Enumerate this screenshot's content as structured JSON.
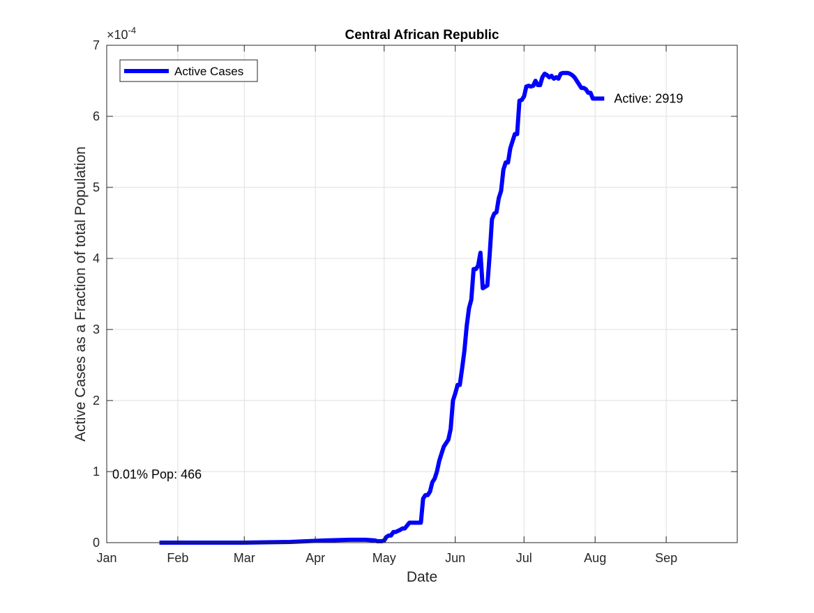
{
  "chart_data": {
    "type": "line",
    "title": "Central African Republic",
    "xlabel": "Date",
    "ylabel": "Active Cases as a Fraction of total Population",
    "y_exponent_label": "×10",
    "y_exponent_power": "-4",
    "y_scale": 0.0001,
    "ylim": [
      0,
      7
    ],
    "yticks": [
      0,
      1,
      2,
      3,
      4,
      5,
      6,
      7
    ],
    "xlim_days": [
      0,
      275
    ],
    "xticks": [
      {
        "label": "Jan",
        "day": 0
      },
      {
        "label": "Feb",
        "day": 31
      },
      {
        "label": "Mar",
        "day": 60
      },
      {
        "label": "Apr",
        "day": 91
      },
      {
        "label": "May",
        "day": 121
      },
      {
        "label": "Jun",
        "day": 152
      },
      {
        "label": "Jul",
        "day": 182
      },
      {
        "label": "Aug",
        "day": 213
      },
      {
        "label": "Sep",
        "day": 244
      }
    ],
    "grid": true,
    "legend": {
      "position": "top-left",
      "entries": [
        "Active Cases"
      ]
    },
    "series": [
      {
        "name": "Active Cases",
        "color": "#0000ff",
        "x": [
          23,
          60,
          80,
          95,
          106,
          113,
          117,
          118,
          120,
          121,
          122,
          123,
          124,
          125,
          126,
          128,
          129,
          130,
          132,
          133,
          134,
          135,
          137,
          138,
          139,
          140,
          141,
          142,
          143,
          144,
          145,
          146,
          147,
          148,
          149,
          150,
          151,
          152,
          153,
          154,
          155,
          156,
          157,
          158,
          159,
          160,
          161,
          162,
          163,
          164,
          165,
          166,
          167,
          168,
          169,
          170,
          171,
          172,
          173,
          174,
          175,
          176,
          177,
          178,
          179,
          180,
          181,
          182,
          183,
          184,
          185,
          186,
          187,
          188,
          189,
          190,
          191,
          192,
          193,
          194,
          195,
          196,
          197,
          198,
          199,
          200,
          201,
          202,
          203,
          204,
          205,
          206,
          207,
          208,
          209,
          210,
          211,
          212,
          213,
          214,
          215,
          216,
          217
        ],
        "y": [
          0,
          0,
          0.01,
          0.03,
          0.04,
          0.04,
          0.03,
          0.02,
          0.02,
          0.03,
          0.08,
          0.1,
          0.1,
          0.15,
          0.15,
          0.18,
          0.2,
          0.2,
          0.28,
          0.28,
          0.28,
          0.28,
          0.28,
          0.62,
          0.67,
          0.67,
          0.72,
          0.85,
          0.9,
          1.0,
          1.15,
          1.25,
          1.35,
          1.4,
          1.45,
          1.6,
          2.0,
          2.1,
          2.22,
          2.22,
          2.45,
          2.7,
          3.05,
          3.3,
          3.42,
          3.85,
          3.85,
          3.9,
          4.08,
          3.58,
          3.6,
          3.62,
          4.05,
          4.55,
          4.63,
          4.65,
          4.85,
          4.95,
          5.25,
          5.35,
          5.35,
          5.55,
          5.65,
          5.75,
          5.75,
          6.22,
          6.23,
          6.28,
          6.42,
          6.43,
          6.42,
          6.43,
          6.5,
          6.44,
          6.44,
          6.55,
          6.6,
          6.58,
          6.55,
          6.57,
          6.53,
          6.55,
          6.53,
          6.6,
          6.61,
          6.61,
          6.61,
          6.6,
          6.58,
          6.55,
          6.5,
          6.45,
          6.4,
          6.4,
          6.38,
          6.33,
          6.33,
          6.25,
          6.25,
          6.25,
          6.25,
          6.25,
          6.25
        ]
      }
    ],
    "annotations": [
      {
        "text": "Active: 2919",
        "at_series_end": true
      },
      {
        "text": "0.01% Pop: 466",
        "y": 0.97
      }
    ]
  }
}
